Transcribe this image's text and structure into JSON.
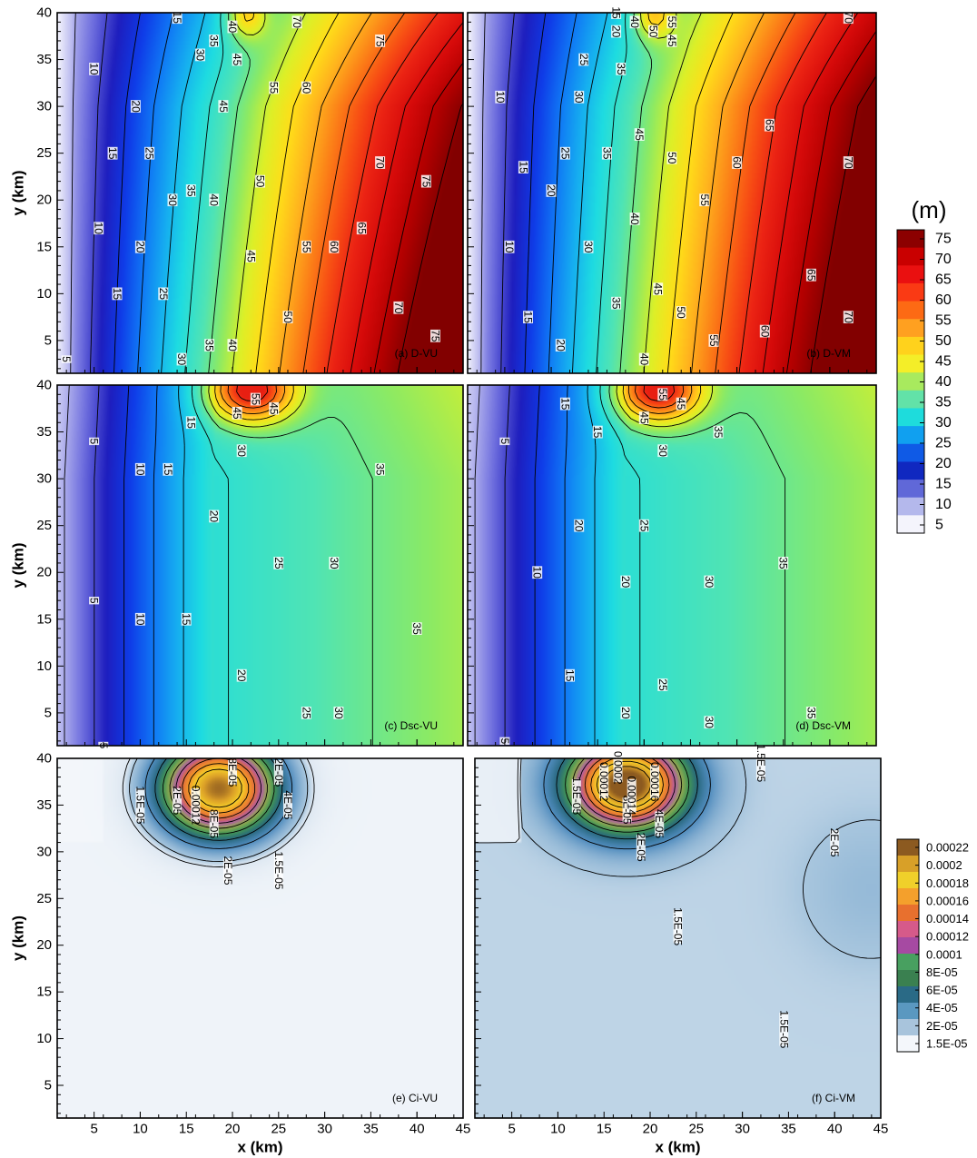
{
  "chart_data": [
    {
      "type": "heatmap",
      "panel_label": "(a) D-VU",
      "xlabel": "",
      "ylabel": "y (km)",
      "xlim": [
        1,
        45
      ],
      "ylim": [
        1.5,
        40
      ],
      "y_ticks": [
        5,
        10,
        15,
        20,
        25,
        30,
        35,
        40
      ],
      "colorscale": "depth",
      "grid": false,
      "model": "depth",
      "field": {
        "steep": 1.1,
        "high_patch": {
          "x": 21.5,
          "y": 40,
          "amp": 15,
          "rx": 1.5,
          "ry": 2
        }
      },
      "contour_levels": [
        5,
        10,
        15,
        20,
        25,
        30,
        35,
        40,
        45,
        50,
        55,
        60,
        65,
        70,
        75
      ],
      "contour_labels": [
        {
          "text": "5",
          "x": 2,
          "y": 3
        },
        {
          "text": "10",
          "x": 5.5,
          "y": 17
        },
        {
          "text": "10",
          "x": 5,
          "y": 34
        },
        {
          "text": "15",
          "x": 7.5,
          "y": 10
        },
        {
          "text": "20",
          "x": 9.5,
          "y": 30
        },
        {
          "text": "15",
          "x": 7,
          "y": 25
        },
        {
          "text": "25",
          "x": 12.5,
          "y": 10
        },
        {
          "text": "20",
          "x": 10,
          "y": 15
        },
        {
          "text": "25",
          "x": 11,
          "y": 25
        },
        {
          "text": "30",
          "x": 14.5,
          "y": 3
        },
        {
          "text": "30",
          "x": 13.5,
          "y": 20
        },
        {
          "text": "35",
          "x": 15.5,
          "y": 21
        },
        {
          "text": "35",
          "x": 17.5,
          "y": 4.5
        },
        {
          "text": "40",
          "x": 18,
          "y": 20
        },
        {
          "text": "40",
          "x": 20,
          "y": 4.5
        },
        {
          "text": "45",
          "x": 19,
          "y": 30
        },
        {
          "text": "45",
          "x": 22,
          "y": 14
        },
        {
          "text": "50",
          "x": 23,
          "y": 22
        },
        {
          "text": "50",
          "x": 26,
          "y": 7.5
        },
        {
          "text": "55",
          "x": 24.5,
          "y": 32
        },
        {
          "text": "55",
          "x": 28,
          "y": 15
        },
        {
          "text": "60",
          "x": 28,
          "y": 32
        },
        {
          "text": "60",
          "x": 31,
          "y": 15
        },
        {
          "text": "65",
          "x": 34,
          "y": 17
        },
        {
          "text": "70",
          "x": 36,
          "y": 24
        },
        {
          "text": "70",
          "x": 38,
          "y": 8.5
        },
        {
          "text": "75",
          "x": 41,
          "y": 22
        },
        {
          "text": "75",
          "x": 42,
          "y": 5.5
        },
        {
          "text": "15",
          "x": 14,
          "y": 39.5
        },
        {
          "text": "35",
          "x": 18,
          "y": 37
        },
        {
          "text": "30",
          "x": 16.5,
          "y": 35.5
        },
        {
          "text": "40",
          "x": 20,
          "y": 38.5
        },
        {
          "text": "45",
          "x": 20.5,
          "y": 35
        },
        {
          "text": "70",
          "x": 27,
          "y": 39
        },
        {
          "text": "75",
          "x": 36,
          "y": 37
        }
      ]
    },
    {
      "type": "heatmap",
      "panel_label": "(b) D-VM",
      "xlabel": "",
      "ylabel": "",
      "xlim": [
        1,
        45
      ],
      "ylim": [
        1.5,
        40
      ],
      "colorscale": "depth",
      "grid": false,
      "model": "depth",
      "field": {
        "steep": 0.85,
        "high_patch": {
          "x": 21,
          "y": 40,
          "amp": 15,
          "rx": 1.5,
          "ry": 2
        }
      },
      "contour_levels": [
        5,
        10,
        15,
        20,
        25,
        30,
        35,
        40,
        45,
        50,
        55,
        60,
        65,
        70,
        75
      ],
      "contour_labels": [
        {
          "text": "10",
          "x": 5.5,
          "y": 15
        },
        {
          "text": "10",
          "x": 4.5,
          "y": 31
        },
        {
          "text": "15",
          "x": 7,
          "y": 23.5
        },
        {
          "text": "15",
          "x": 7.5,
          "y": 7.5
        },
        {
          "text": "20",
          "x": 10,
          "y": 21
        },
        {
          "text": "20",
          "x": 11,
          "y": 4.5
        },
        {
          "text": "25",
          "x": 11.5,
          "y": 25
        },
        {
          "text": "25",
          "x": 13.5,
          "y": 35
        },
        {
          "text": "30",
          "x": 14,
          "y": 15
        },
        {
          "text": "30",
          "x": 13,
          "y": 31
        },
        {
          "text": "35",
          "x": 16,
          "y": 25
        },
        {
          "text": "35",
          "x": 17,
          "y": 9
        },
        {
          "text": "40",
          "x": 19,
          "y": 18
        },
        {
          "text": "40",
          "x": 20,
          "y": 3
        },
        {
          "text": "45",
          "x": 19.5,
          "y": 27
        },
        {
          "text": "45",
          "x": 21.5,
          "y": 10.5
        },
        {
          "text": "50",
          "x": 23,
          "y": 24.5
        },
        {
          "text": "50",
          "x": 24,
          "y": 8
        },
        {
          "text": "55",
          "x": 26.5,
          "y": 20
        },
        {
          "text": "55",
          "x": 27.5,
          "y": 5
        },
        {
          "text": "60",
          "x": 30,
          "y": 24
        },
        {
          "text": "60",
          "x": 33,
          "y": 6
        },
        {
          "text": "65",
          "x": 33.5,
          "y": 28
        },
        {
          "text": "65",
          "x": 38,
          "y": 12
        },
        {
          "text": "70",
          "x": 42,
          "y": 24
        },
        {
          "text": "70",
          "x": 42,
          "y": 7.5
        },
        {
          "text": "70",
          "x": 42,
          "y": 39.5
        },
        {
          "text": "20",
          "x": 17,
          "y": 38
        },
        {
          "text": "15",
          "x": 17,
          "y": 40
        },
        {
          "text": "35",
          "x": 17.5,
          "y": 34
        },
        {
          "text": "40",
          "x": 19,
          "y": 39
        },
        {
          "text": "45",
          "x": 23,
          "y": 37
        },
        {
          "text": "50",
          "x": 21,
          "y": 38
        },
        {
          "text": "55",
          "x": 23,
          "y": 39
        }
      ]
    },
    {
      "type": "heatmap",
      "panel_label": "(c) Dsc-VU",
      "xlabel": "",
      "ylabel": "y (km)",
      "xlim": [
        1,
        45
      ],
      "ylim": [
        1.5,
        40
      ],
      "y_ticks": [
        5,
        10,
        15,
        20,
        25,
        30,
        35,
        40
      ],
      "colorscale": "depth",
      "grid": false,
      "model": "scour",
      "field": {
        "peak": {
          "x": 22,
          "y": 39.5,
          "amp": 32,
          "rx": 3.2,
          "ry": 2.4
        }
      },
      "contour_levels": [
        5,
        10,
        15,
        20,
        25,
        30,
        35,
        40,
        45,
        50,
        55,
        60
      ],
      "contour_labels": [
        {
          "text": "5",
          "x": 5,
          "y": 34
        },
        {
          "text": "5",
          "x": 5,
          "y": 17
        },
        {
          "text": "5",
          "x": 6,
          "y": 1.5
        },
        {
          "text": "10",
          "x": 10,
          "y": 31
        },
        {
          "text": "10",
          "x": 10,
          "y": 15
        },
        {
          "text": "15",
          "x": 13,
          "y": 31
        },
        {
          "text": "15",
          "x": 15,
          "y": 15
        },
        {
          "text": "15",
          "x": 15.5,
          "y": 36
        },
        {
          "text": "20",
          "x": 18,
          "y": 26
        },
        {
          "text": "20",
          "x": 21,
          "y": 9
        },
        {
          "text": "25",
          "x": 25,
          "y": 21
        },
        {
          "text": "25",
          "x": 28,
          "y": 5
        },
        {
          "text": "30",
          "x": 31,
          "y": 21
        },
        {
          "text": "30",
          "x": 31.5,
          "y": 5
        },
        {
          "text": "30",
          "x": 21,
          "y": 33
        },
        {
          "text": "35",
          "x": 36,
          "y": 31
        },
        {
          "text": "35",
          "x": 40,
          "y": 14
        },
        {
          "text": "45",
          "x": 20.5,
          "y": 37
        },
        {
          "text": "45",
          "x": 24.5,
          "y": 37.5
        },
        {
          "text": "55",
          "x": 22.5,
          "y": 38.5
        }
      ]
    },
    {
      "type": "heatmap",
      "panel_label": "(d) Dsc-VM",
      "xlabel": "",
      "ylabel": "",
      "xlim": [
        1,
        45
      ],
      "ylim": [
        1.5,
        40
      ],
      "colorscale": "depth",
      "grid": false,
      "model": "scour",
      "field": {
        "peak": {
          "x": 21.5,
          "y": 39.5,
          "amp": 32,
          "rx": 3.2,
          "ry": 2.4
        }
      },
      "contour_levels": [
        5,
        10,
        15,
        20,
        25,
        30,
        35,
        40,
        45,
        50,
        55,
        60
      ],
      "contour_labels": [
        {
          "text": "5",
          "x": 5,
          "y": 34
        },
        {
          "text": "5",
          "x": 5,
          "y": 2
        },
        {
          "text": "10",
          "x": 8.5,
          "y": 20
        },
        {
          "text": "15",
          "x": 11.5,
          "y": 38
        },
        {
          "text": "15",
          "x": 12,
          "y": 9
        },
        {
          "text": "15",
          "x": 15,
          "y": 35
        },
        {
          "text": "20",
          "x": 13,
          "y": 25
        },
        {
          "text": "20",
          "x": 18,
          "y": 5
        },
        {
          "text": "20",
          "x": 18,
          "y": 19
        },
        {
          "text": "25",
          "x": 20,
          "y": 25
        },
        {
          "text": "25",
          "x": 22,
          "y": 8
        },
        {
          "text": "30",
          "x": 22,
          "y": 33
        },
        {
          "text": "30",
          "x": 27,
          "y": 19
        },
        {
          "text": "30",
          "x": 27,
          "y": 4
        },
        {
          "text": "35",
          "x": 35,
          "y": 21
        },
        {
          "text": "35",
          "x": 38,
          "y": 5
        },
        {
          "text": "35",
          "x": 28,
          "y": 35
        },
        {
          "text": "45",
          "x": 20,
          "y": 36.5
        },
        {
          "text": "45",
          "x": 24,
          "y": 38
        },
        {
          "text": "55",
          "x": 22,
          "y": 39
        }
      ]
    },
    {
      "type": "heatmap",
      "panel_label": "(e) Ci-VU",
      "xlabel": "x (km)",
      "ylabel": "y (km)",
      "xlim": [
        1,
        45
      ],
      "ylim": [
        1.5,
        40
      ],
      "x_ticks": [
        5,
        10,
        15,
        20,
        25,
        30,
        35,
        40,
        45
      ],
      "y_ticks": [
        5,
        10,
        15,
        20,
        25,
        30,
        35,
        40
      ],
      "colorscale": "conc",
      "grid": false,
      "model": "conc",
      "field": {
        "peak": {
          "x": 18.5,
          "y": 36.8,
          "amp": 0.00021,
          "rx": 4.2,
          "ry": 3.4
        },
        "background": 5e-06
      },
      "contour_levels": [
        1.5e-05,
        2e-05,
        4e-05,
        6e-05,
        8e-05,
        0.0001,
        0.00012,
        0.00014,
        0.00016,
        0.00018
      ],
      "contour_labels": [
        {
          "text": "1.5E-05",
          "x": 10,
          "y": 35
        },
        {
          "text": "2E-05",
          "x": 19.5,
          "y": 28
        },
        {
          "text": "1.5E-05",
          "x": 25,
          "y": 28
        },
        {
          "text": "2E-05",
          "x": 25,
          "y": 38.5
        },
        {
          "text": "2E-05",
          "x": 14,
          "y": 35.5
        },
        {
          "text": "4E-05",
          "x": 26,
          "y": 35
        },
        {
          "text": "8E-05",
          "x": 20,
          "y": 38.5
        },
        {
          "text": "8E-05",
          "x": 18,
          "y": 33
        },
        {
          "text": "0.00012",
          "x": 16,
          "y": 35
        }
      ]
    },
    {
      "type": "heatmap",
      "panel_label": "(f) Ci-VM",
      "xlabel": "x (km)",
      "ylabel": "",
      "xlim": [
        1,
        45
      ],
      "ylim": [
        1.5,
        40
      ],
      "x_ticks": [
        5,
        10,
        15,
        20,
        25,
        30,
        35,
        40,
        45
      ],
      "colorscale": "conc",
      "grid": false,
      "model": "conc",
      "field": {
        "peak": {
          "x": 17.5,
          "y": 37.2,
          "amp": 0.00022,
          "rx": 4.2,
          "ry": 3.2
        },
        "background": 1.8e-05,
        "side": {
          "x": 44,
          "y": 26,
          "amp": 6e-06,
          "rx": 5,
          "ry": 5
        }
      },
      "contour_levels": [
        1.5e-05,
        2e-05,
        4e-05,
        6e-05,
        8e-05,
        0.0001,
        0.00012,
        0.00014,
        0.00016,
        0.00018,
        0.0002
      ],
      "contour_labels": [
        {
          "text": "1.5E-05",
          "x": 12,
          "y": 36
        },
        {
          "text": "1.5E-05",
          "x": 32,
          "y": 39.5
        },
        {
          "text": "2E-05",
          "x": 19,
          "y": 30.5
        },
        {
          "text": "2E-05",
          "x": 40,
          "y": 31
        },
        {
          "text": "1.5E-05",
          "x": 23,
          "y": 22
        },
        {
          "text": "1.5E-05",
          "x": 34.5,
          "y": 11
        },
        {
          "text": "4E-05",
          "x": 21,
          "y": 33
        },
        {
          "text": "8E-05",
          "x": 17.5,
          "y": 34.5
        },
        {
          "text": "0.00014",
          "x": 18,
          "y": 36
        },
        {
          "text": "0.00012",
          "x": 15,
          "y": 37.5
        },
        {
          "text": "0.0002",
          "x": 16.5,
          "y": 39
        },
        {
          "text": "0.00016",
          "x": 20.5,
          "y": 37.5
        }
      ]
    }
  ],
  "colorbars": {
    "depth": {
      "unit": "(m)",
      "labels": [
        "75",
        "70",
        "65",
        "60",
        "55",
        "50",
        "45",
        "40",
        "35",
        "30",
        "25",
        "20",
        "15",
        "10",
        "5"
      ],
      "colors": [
        "#8c0000",
        "#c90000",
        "#ea1010",
        "#fa3a14",
        "#fd6a14",
        "#ffa020",
        "#ffd21c",
        "#f4ee28",
        "#a8ea5e",
        "#62e2a8",
        "#1edcdc",
        "#10a0f0",
        "#0f5ae6",
        "#1028c0",
        "#6068d8",
        "#b4b8ec",
        "#f4f4fc"
      ]
    },
    "conc": {
      "labels": [
        "0.00022",
        "0.0002",
        "0.00018",
        "0.00016",
        "0.00014",
        "0.00012",
        "0.0001",
        "8E-05",
        "6E-05",
        "4E-05",
        "2E-05",
        "1.5E-05"
      ],
      "colors": [
        "#8c5a20",
        "#d8a028",
        "#f0d02a",
        "#f4a02c",
        "#e8702e",
        "#d65a8a",
        "#a64aa2",
        "#48a060",
        "#3a8050",
        "#2a6a86",
        "#5a98c0",
        "#a8c4dc",
        "#f4f7fb"
      ]
    }
  }
}
